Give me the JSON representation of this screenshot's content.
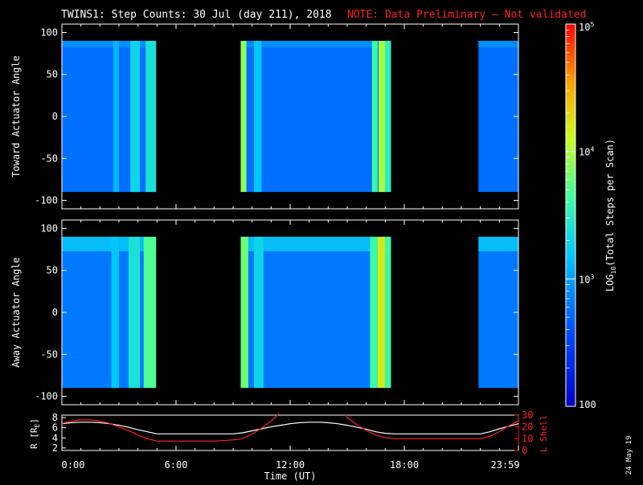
{
  "header": {
    "title": "TWINS1: Step Counts: 30 Jul (day 211), 2018",
    "note": "NOTE: Data Preliminary – Not validated"
  },
  "stamp": "24 May 19",
  "colors": {
    "background": "#000000",
    "axes": "#ffffff",
    "note_text": "#ff2020",
    "r_line": "#ffffff",
    "lshell_line": "#ff2020",
    "lshell_axis": "#ff2020"
  },
  "colorbar": {
    "label_prefix": "LOG",
    "label_sub": "10",
    "label_suffix": "(Total Steps per Scan)",
    "ticks": [
      {
        "value": 100000,
        "label": "10",
        "sup": "5"
      },
      {
        "value": 10000,
        "label": "10",
        "sup": "4"
      },
      {
        "value": 1000,
        "label": "10",
        "sup": "3"
      },
      {
        "value": 100,
        "label": "100",
        "sup": ""
      }
    ],
    "range": [
      100,
      100000
    ],
    "scale": "log"
  },
  "chart_data": [
    {
      "type": "heatmap",
      "ylabel": "Toward Actuator Angle",
      "ylim": [
        -110,
        110
      ],
      "yticks": [
        100,
        50,
        0,
        -50,
        -100
      ],
      "data_angle_range": [
        -90,
        90
      ],
      "xlim_hours": [
        0,
        24
      ],
      "coverage_hours": [
        [
          0,
          4.95
        ],
        [
          9.4,
          17.3
        ],
        [
          21.9,
          24
        ]
      ],
      "bright_bands": [
        {
          "start": 2.7,
          "end": 3.0,
          "log_level": 3.1
        },
        {
          "start": 3.6,
          "end": 4.1,
          "log_level": 3.3
        },
        {
          "start": 4.4,
          "end": 4.95,
          "log_level": 3.4
        },
        {
          "start": 9.4,
          "end": 9.7,
          "log_level": 3.9
        },
        {
          "start": 10.1,
          "end": 10.5,
          "log_level": 3.2
        },
        {
          "start": 16.3,
          "end": 16.6,
          "log_level": 3.6
        },
        {
          "start": 16.65,
          "end": 17.0,
          "log_level": 4.0
        },
        {
          "start": 17.0,
          "end": 17.3,
          "log_level": 3.5
        }
      ]
    },
    {
      "type": "heatmap",
      "ylabel": "Away Actuator Angle",
      "ylim": [
        -110,
        110
      ],
      "yticks": [
        100,
        50,
        0,
        -50,
        -100
      ],
      "data_angle_range": [
        -90,
        90
      ],
      "xlim_hours": [
        0,
        24
      ],
      "coverage_hours": [
        [
          0,
          4.95
        ],
        [
          9.4,
          17.3
        ],
        [
          21.9,
          24
        ]
      ],
      "bright_bands": [
        {
          "start": 2.6,
          "end": 3.0,
          "log_level": 3.2
        },
        {
          "start": 3.5,
          "end": 4.1,
          "log_level": 3.4
        },
        {
          "start": 4.3,
          "end": 4.95,
          "log_level": 3.7
        },
        {
          "start": 9.4,
          "end": 9.8,
          "log_level": 3.8
        },
        {
          "start": 10.1,
          "end": 10.6,
          "log_level": 3.3
        },
        {
          "start": 16.2,
          "end": 16.6,
          "log_level": 3.6
        },
        {
          "start": 16.6,
          "end": 17.0,
          "log_level": 4.2
        },
        {
          "start": 17.0,
          "end": 17.3,
          "log_level": 3.6
        }
      ]
    },
    {
      "type": "line",
      "ylabel": "R [R",
      "ylabel_sub": "E",
      "ylabel_end": "]",
      "ylim": [
        1.5,
        8.5
      ],
      "yticks": [
        2,
        4,
        6,
        8
      ],
      "y2label": "L Shell",
      "y2lim": [
        0,
        30
      ],
      "y2ticks": [
        0,
        10,
        20,
        30
      ],
      "xlabel": "Time (UT)",
      "xticks": [
        {
          "hour": 0,
          "label": "0:00"
        },
        {
          "hour": 6,
          "label": "6:00"
        },
        {
          "hour": 12,
          "label": "12:00"
        },
        {
          "hour": 18,
          "label": "18:00"
        },
        {
          "hour": 23.983,
          "label": "23:59"
        }
      ],
      "series": [
        {
          "axis": "left",
          "x": [
            0,
            0.5,
            1,
            1.5,
            2,
            2.5,
            3,
            3.5,
            4,
            4.5,
            5,
            6,
            7,
            8,
            9,
            9.5,
            10,
            10.5,
            11,
            11.5,
            12,
            12.5,
            13,
            13.5,
            14,
            14.5,
            15,
            15.5,
            16,
            16.5,
            17,
            17.5,
            18,
            19,
            20,
            21,
            22,
            22.5,
            23,
            23.5,
            24
          ],
          "values": [
            6.8,
            7.0,
            7.1,
            7.1,
            7.0,
            6.8,
            6.5,
            6.1,
            5.6,
            5.2,
            4.8,
            4.8,
            4.8,
            4.8,
            4.8,
            5.0,
            5.4,
            5.8,
            6.2,
            6.5,
            6.8,
            7.0,
            7.1,
            7.1,
            7.0,
            6.8,
            6.5,
            6.1,
            5.7,
            5.2,
            4.9,
            4.8,
            4.8,
            4.8,
            4.8,
            4.8,
            4.8,
            5.2,
            5.8,
            6.3,
            6.8
          ]
        },
        {
          "axis": "right",
          "x": [
            0,
            0.5,
            1,
            1.5,
            2,
            2.5,
            3,
            3.5,
            4,
            4.5,
            5,
            6,
            7,
            8,
            9,
            9.5,
            10,
            10.5,
            11,
            11.4,
            11.5,
            14.9,
            15,
            15.5,
            16,
            16.5,
            17,
            17.5,
            18,
            19,
            20,
            21,
            22,
            22.5,
            23,
            23.5,
            24
          ],
          "values": [
            23,
            25,
            26,
            26,
            25,
            23,
            20,
            17,
            13,
            10,
            8,
            8,
            8,
            8,
            9,
            10,
            14,
            19,
            25,
            31,
            null,
            31,
            28,
            22,
            17,
            13,
            11,
            10,
            10,
            10,
            10,
            10,
            10,
            12,
            16,
            21,
            25
          ]
        }
      ]
    }
  ]
}
